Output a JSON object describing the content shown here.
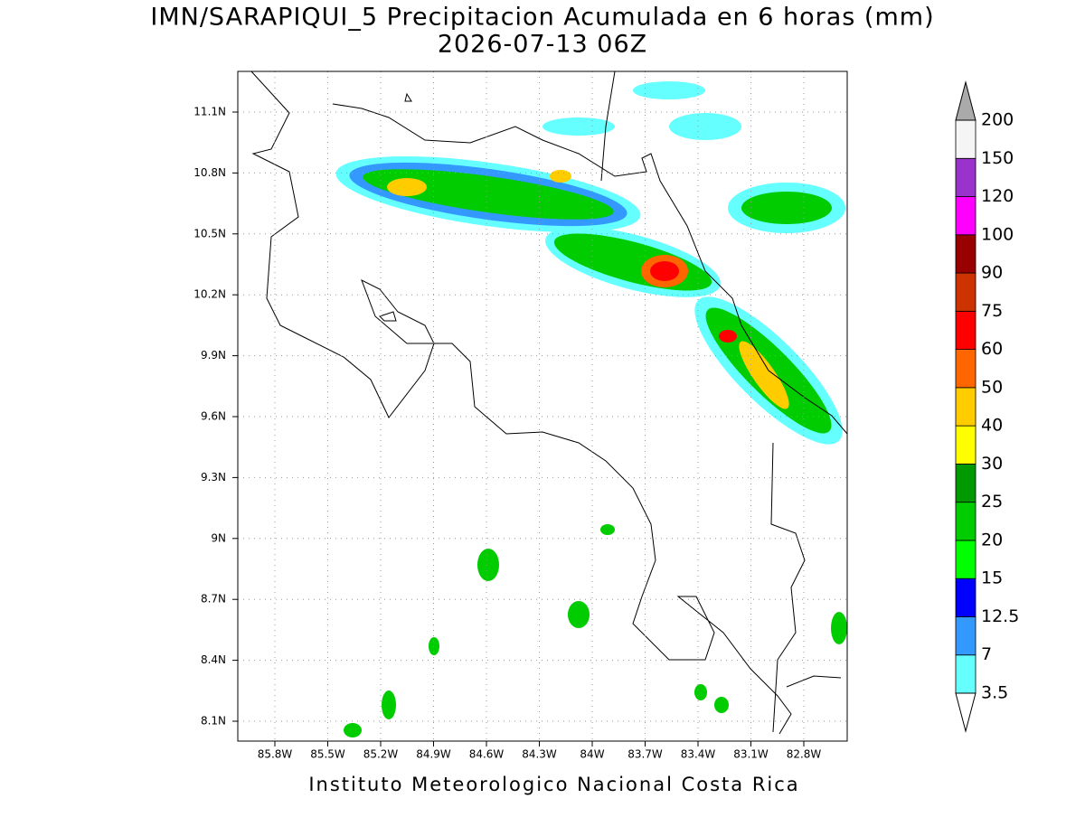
{
  "header": {
    "title": "IMN/SARAPIQUI_5 Precipitacion Acumulada en 6 horas (mm)",
    "subtitle": "2026-07-13 06Z"
  },
  "map": {
    "lon_labels": [
      "85.8W",
      "85.5W",
      "85.2W",
      "84.9W",
      "84.6W",
      "84.3W",
      "84W",
      "83.7W",
      "83.4W",
      "83.1W",
      "82.8W"
    ],
    "lat_labels": [
      "11.1N",
      "10.8N",
      "10.5N",
      "10.2N",
      "9.9N",
      "9.6N",
      "9.3N",
      "9N",
      "8.7N",
      "8.4N",
      "8.1N"
    ]
  },
  "colorbar": {
    "labels": [
      "3.5",
      "7",
      "12.5",
      "15",
      "20",
      "25",
      "30",
      "40",
      "50",
      "60",
      "75",
      "90",
      "100",
      "120",
      "150",
      "200"
    ],
    "colors": [
      "#66ffff",
      "#3399ff",
      "#0000ff",
      "#00ff00",
      "#00cc00",
      "#009900",
      "#ffff00",
      "#ffcc00",
      "#ff6600",
      "#ff0000",
      "#cc3300",
      "#990000",
      "#ff00ff",
      "#9933cc",
      "#f5f5f5"
    ],
    "over_color": "#aaaaaa",
    "under_color": "#ffffff"
  },
  "footer": "Instituto Meteorologico Nacional Costa Rica"
}
